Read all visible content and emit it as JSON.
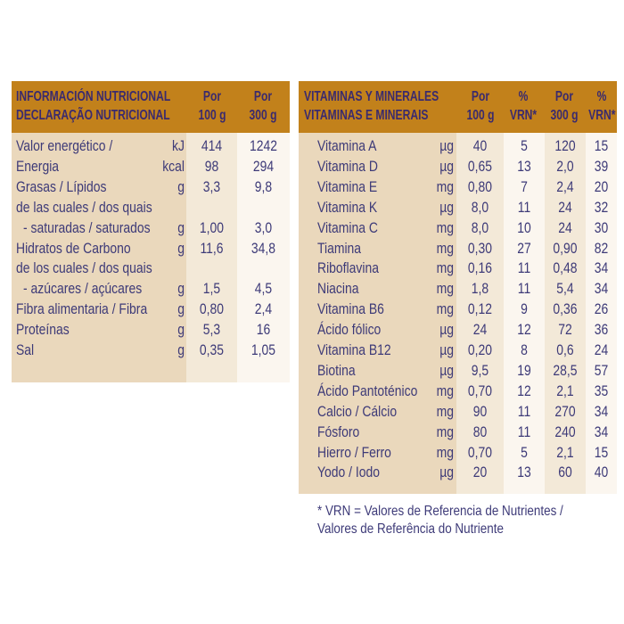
{
  "nutrition": {
    "header": {
      "title_line1": "INFORMACIÓN NUTRICIONAL",
      "title_line2": "DECLARAÇÃO NUTRICIONAL",
      "col1_line1": "Por",
      "col1_line2": "100 g",
      "col2_line1": "Por",
      "col2_line2": "300 g"
    },
    "rows": [
      {
        "label": "Valor energético /",
        "unit": "kJ",
        "v100": "414",
        "v300": "1242"
      },
      {
        "label": "Energia",
        "unit": "kcal",
        "v100": "98",
        "v300": "294"
      },
      {
        "label": "Grasas / Lípidos",
        "unit": "g",
        "v100": "3,3",
        "v300": "9,8"
      },
      {
        "label": "de las cuales / dos quais",
        "unit": "",
        "v100": "",
        "v300": ""
      },
      {
        "label": "- saturadas / saturados",
        "unit": "g",
        "v100": "1,00",
        "v300": "3,0"
      },
      {
        "label": "Hidratos de Carbono",
        "unit": "g",
        "v100": "11,6",
        "v300": "34,8"
      },
      {
        "label": "de los cuales / dos quais",
        "unit": "",
        "v100": "",
        "v300": ""
      },
      {
        "label": "- azúcares / açúcares",
        "unit": "g",
        "v100": "1,5",
        "v300": "4,5"
      },
      {
        "label": "Fibra alimentaria / Fibra",
        "unit": "g",
        "v100": "0,80",
        "v300": "2,4"
      },
      {
        "label": "Proteínas",
        "unit": "g",
        "v100": "5,3",
        "v300": "16"
      },
      {
        "label": "Sal",
        "unit": "g",
        "v100": "0,35",
        "v300": "1,05"
      }
    ]
  },
  "vitamins": {
    "header": {
      "title_line1": "VITAMINAS Y MINERALES",
      "title_line2": "VITAMINAS E MINERAIS",
      "col1_line1": "Por",
      "col1_line2": "100 g",
      "col2_line1": "%",
      "col2_line2": "VRN*",
      "col3_line1": "Por",
      "col3_line2": "300 g",
      "col4_line1": "%",
      "col4_line2": "VRN*"
    },
    "rows": [
      {
        "label": "Vitamina A",
        "unit": "µg",
        "v100": "40",
        "vrn100": "5",
        "v300": "120",
        "vrn300": "15"
      },
      {
        "label": "Vitamina D",
        "unit": "µg",
        "v100": "0,65",
        "vrn100": "13",
        "v300": "2,0",
        "vrn300": "39"
      },
      {
        "label": "Vitamina E",
        "unit": "mg",
        "v100": "0,80",
        "vrn100": "7",
        "v300": "2,4",
        "vrn300": "20"
      },
      {
        "label": "Vitamina K",
        "unit": "µg",
        "v100": "8,0",
        "vrn100": "11",
        "v300": "24",
        "vrn300": "32"
      },
      {
        "label": "Vitamina C",
        "unit": "mg",
        "v100": "8,0",
        "vrn100": "10",
        "v300": "24",
        "vrn300": "30"
      },
      {
        "label": "Tiamina",
        "unit": "mg",
        "v100": "0,30",
        "vrn100": "27",
        "v300": "0,90",
        "vrn300": "82"
      },
      {
        "label": "Riboflavina",
        "unit": "mg",
        "v100": "0,16",
        "vrn100": "11",
        "v300": "0,48",
        "vrn300": "34"
      },
      {
        "label": "Niacina",
        "unit": "mg",
        "v100": "1,8",
        "vrn100": "11",
        "v300": "5,4",
        "vrn300": "34"
      },
      {
        "label": "Vitamina B6",
        "unit": "mg",
        "v100": "0,12",
        "vrn100": "9",
        "v300": "0,36",
        "vrn300": "26"
      },
      {
        "label": "Ácido fólico",
        "unit": "µg",
        "v100": "24",
        "vrn100": "12",
        "v300": "72",
        "vrn300": "36"
      },
      {
        "label": "Vitamina B12",
        "unit": "µg",
        "v100": "0,20",
        "vrn100": "8",
        "v300": "0,6",
        "vrn300": "24"
      },
      {
        "label": "Biotina",
        "unit": "µg",
        "v100": "9,5",
        "vrn100": "19",
        "v300": "28,5",
        "vrn300": "57"
      },
      {
        "label": "Ácido Pantoténico",
        "unit": "mg",
        "v100": "0,70",
        "vrn100": "12",
        "v300": "2,1",
        "vrn300": "35"
      },
      {
        "label": "Calcio / Cálcio",
        "unit": "mg",
        "v100": "90",
        "vrn100": "11",
        "v300": "270",
        "vrn300": "34"
      },
      {
        "label": "Fósforo",
        "unit": "mg",
        "v100": "80",
        "vrn100": "11",
        "v300": "240",
        "vrn300": "34"
      },
      {
        "label": "Hierro / Ferro",
        "unit": "mg",
        "v100": "0,70",
        "vrn100": "5",
        "v300": "2,1",
        "vrn300": "15"
      },
      {
        "label": "Yodo / Iodo",
        "unit": "µg",
        "v100": "20",
        "vrn100": "13",
        "v300": "60",
        "vrn300": "40"
      }
    ],
    "note_line1": "* VRN = Valores de Referencia de Nutrientes /",
    "note_line2": "Valores de Referência do Nutriente"
  },
  "colors": {
    "header_bg": "#c2811b",
    "label_col_bg": "#ead8bc",
    "value_col_dark_bg": "#f3e9d8",
    "value_col_light_bg": "#fbf6ef",
    "text": "#3d3a78"
  }
}
